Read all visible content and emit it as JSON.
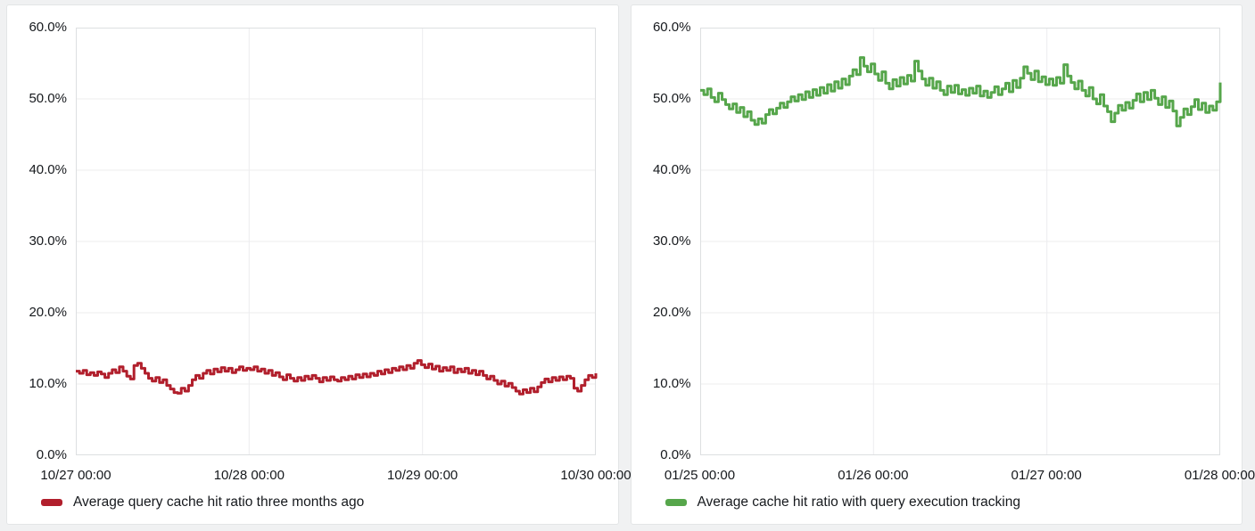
{
  "page": {
    "background_color": "#f0f1f2"
  },
  "panel_colors": {
    "background": "#ffffff",
    "border": "#e3e5e6",
    "grid": "#ececee",
    "frame": "#dddfe1",
    "text": "#16191d"
  },
  "chart_data": [
    {
      "type": "line",
      "title": "",
      "line_style": "step",
      "grid": true,
      "legend_position": "bottom-left",
      "ylim": [
        0,
        60
      ],
      "y_unit": "percent",
      "y_tick_labels": [
        "0.0%",
        "10.0%",
        "20.0%",
        "30.0%",
        "40.0%",
        "50.0%",
        "60.0%"
      ],
      "x_tick_labels": [
        "10/27 00:00",
        "10/28 00:00",
        "10/29 00:00",
        "10/30 00:00"
      ],
      "x_range": "3 days, points every 30 minutes",
      "series": [
        {
          "name": "Average query cache hit ratio three months ago",
          "color": "#b11f2c",
          "values": [
            11.8,
            11.5,
            11.9,
            11.3,
            11.6,
            11.2,
            11.7,
            11.4,
            10.9,
            11.5,
            12.0,
            11.6,
            12.4,
            11.8,
            11.1,
            10.7,
            12.6,
            12.9,
            12.2,
            11.5,
            10.8,
            10.4,
            10.9,
            10.2,
            10.6,
            9.8,
            9.3,
            8.8,
            8.7,
            9.4,
            9.0,
            9.8,
            10.6,
            11.2,
            10.8,
            11.5,
            11.9,
            11.4,
            12.1,
            11.7,
            12.3,
            11.8,
            12.2,
            11.6,
            12.0,
            12.4,
            11.9,
            12.2,
            12.0,
            12.4,
            11.8,
            12.1,
            11.5,
            11.9,
            11.2,
            11.6,
            11.0,
            10.6,
            11.3,
            10.8,
            10.4,
            10.9,
            10.5,
            11.1,
            10.7,
            11.2,
            10.8,
            10.3,
            10.9,
            10.5,
            11.0,
            10.6,
            10.4,
            10.9,
            10.6,
            11.1,
            10.7,
            11.3,
            10.9,
            11.4,
            11.0,
            11.5,
            11.2,
            11.8,
            11.4,
            12.0,
            11.6,
            12.2,
            11.9,
            12.4,
            12.0,
            12.6,
            12.2,
            12.9,
            13.3,
            12.7,
            12.3,
            12.8,
            12.1,
            12.5,
            11.8,
            12.3,
            11.9,
            12.4,
            11.6,
            12.1,
            11.7,
            12.2,
            11.5,
            11.9,
            11.3,
            11.8,
            11.2,
            10.7,
            11.1,
            10.5,
            10.0,
            10.4,
            9.7,
            10.1,
            9.5,
            9.0,
            8.6,
            9.2,
            8.8,
            9.4,
            8.9,
            9.6,
            10.2,
            10.7,
            10.3,
            10.9,
            10.5,
            11.0,
            10.6,
            11.1,
            10.8,
            9.4,
            9.0,
            9.8,
            10.6,
            11.2,
            10.9,
            11.5
          ]
        }
      ]
    },
    {
      "type": "line",
      "title": "",
      "line_style": "step",
      "grid": true,
      "legend_position": "bottom-left",
      "ylim": [
        0,
        60
      ],
      "y_unit": "percent",
      "y_tick_labels": [
        "0.0%",
        "10.0%",
        "20.0%",
        "30.0%",
        "40.0%",
        "50.0%",
        "60.0%"
      ],
      "x_tick_labels": [
        "01/25 00:00",
        "01/26 00:00",
        "01/27 00:00",
        "01/28 00:00"
      ],
      "x_range": "3 days, points every 30 minutes",
      "series": [
        {
          "name": "Average cache hit ratio with query execution tracking",
          "color": "#56a64b",
          "values": [
            51.2,
            50.6,
            51.4,
            50.2,
            49.6,
            50.8,
            49.9,
            49.2,
            48.6,
            49.3,
            48.1,
            48.8,
            47.5,
            48.2,
            47.0,
            46.4,
            47.2,
            46.6,
            47.8,
            48.5,
            47.9,
            48.7,
            49.4,
            48.8,
            49.6,
            50.3,
            49.7,
            50.6,
            49.9,
            51.0,
            50.2,
            51.3,
            50.5,
            51.6,
            50.8,
            52.0,
            51.1,
            52.4,
            51.5,
            52.8,
            52.0,
            53.2,
            54.1,
            53.4,
            55.8,
            54.6,
            53.8,
            54.9,
            53.5,
            52.6,
            53.8,
            52.2,
            51.4,
            52.7,
            51.8,
            53.0,
            52.1,
            53.3,
            52.5,
            55.3,
            53.9,
            52.8,
            51.9,
            52.9,
            51.5,
            52.4,
            51.2,
            50.6,
            51.8,
            50.9,
            51.9,
            50.7,
            51.3,
            50.5,
            51.5,
            50.8,
            51.8,
            50.4,
            51.1,
            50.2,
            50.9,
            51.7,
            50.6,
            51.4,
            52.2,
            51.0,
            52.6,
            51.6,
            52.9,
            54.5,
            53.6,
            52.7,
            53.9,
            52.4,
            53.1,
            52.0,
            52.8,
            51.9,
            53.0,
            52.2,
            54.8,
            53.2,
            52.3,
            51.4,
            52.5,
            51.2,
            50.4,
            51.6,
            50.0,
            49.3,
            50.6,
            49.0,
            48.2,
            46.8,
            48.0,
            49.1,
            48.4,
            49.5,
            48.7,
            49.8,
            50.7,
            49.6,
            50.9,
            49.9,
            51.2,
            50.1,
            49.2,
            50.3,
            48.8,
            49.7,
            48.3,
            46.2,
            47.4,
            48.6,
            47.8,
            48.9,
            49.9,
            48.5,
            49.4,
            48.1,
            49.0,
            48.4,
            49.6,
            52.3
          ]
        }
      ]
    }
  ]
}
